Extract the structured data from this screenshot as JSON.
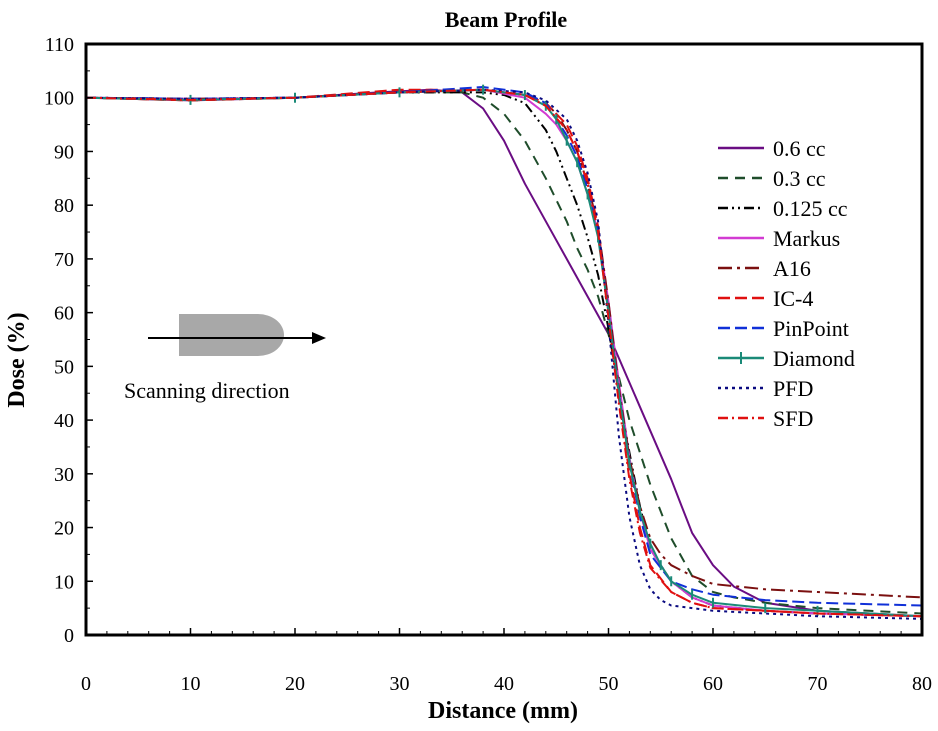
{
  "chart_data": {
    "type": "line",
    "title": "Beam Profile",
    "xlabel": "Distance (mm)",
    "ylabel": "Dose (%)",
    "xlim": [
      0,
      80
    ],
    "ylim": [
      0,
      110
    ],
    "xticks": [
      0,
      10,
      20,
      30,
      40,
      50,
      60,
      70,
      80
    ],
    "yticks": [
      0,
      10,
      20,
      30,
      40,
      50,
      60,
      70,
      80,
      90,
      100,
      110
    ],
    "grid": false,
    "legend_position": "right",
    "annotation": "Scanning direction",
    "series": [
      {
        "name": "0.6 cc",
        "color": "#6a0d83",
        "dash": "solid",
        "x": [
          0,
          10,
          20,
          28,
          33,
          36,
          38,
          40,
          42,
          44,
          46,
          48,
          50,
          52,
          54,
          56,
          57,
          58,
          60,
          62,
          65,
          70,
          75,
          80
        ],
        "y": [
          100,
          99.5,
          100,
          101,
          101.5,
          101,
          98,
          92,
          84,
          77,
          70,
          63,
          56,
          47,
          38,
          29,
          24,
          19,
          13,
          9,
          6,
          4.5,
          4,
          3.5
        ]
      },
      {
        "name": "0.3 cc",
        "color": "#1f4d2b",
        "dash": "10,7",
        "x": [
          0,
          10,
          20,
          30,
          36,
          38,
          40,
          42,
          44,
          46,
          47,
          48,
          49,
          50,
          51,
          52,
          54,
          56,
          58,
          60,
          62,
          65,
          70,
          80
        ],
        "y": [
          100,
          99.5,
          100,
          101,
          101,
          100,
          97,
          92,
          85,
          77,
          72,
          68,
          63,
          56,
          48,
          40,
          28,
          18,
          11,
          8,
          7,
          6,
          5,
          4
        ]
      },
      {
        "name": "0.125 cc",
        "color": "#000000",
        "dash": "10,4,2,4,2,4",
        "x": [
          0,
          10,
          20,
          30,
          38,
          40,
          42,
          44,
          45,
          46,
          47,
          48,
          49,
          50,
          51,
          52,
          53,
          54,
          56,
          58,
          60,
          65,
          70,
          80
        ],
        "y": [
          100,
          99.8,
          100,
          101,
          101,
          100.5,
          99,
          94,
          90,
          85,
          80,
          74,
          67,
          57,
          45,
          34,
          24,
          16,
          10,
          7,
          5.5,
          4.5,
          4,
          3.5
        ]
      },
      {
        "name": "Markus",
        "color": "#d23bd2",
        "dash": "solid",
        "x": [
          0,
          10,
          20,
          30,
          38,
          42,
          44,
          45,
          46,
          47,
          48,
          49,
          50,
          51,
          52,
          53,
          54,
          56,
          58,
          60,
          65,
          70,
          80
        ],
        "y": [
          100,
          99.8,
          100,
          101,
          101.5,
          100,
          97,
          95,
          92,
          88,
          82,
          75,
          62,
          47,
          33,
          23,
          16,
          10,
          7,
          5.5,
          4.5,
          4,
          3.5
        ]
      },
      {
        "name": "A16",
        "color": "#7b1010",
        "dash": "14,5,3,5",
        "x": [
          0,
          10,
          20,
          30,
          38,
          42,
          44,
          45,
          46,
          47,
          48,
          49,
          50,
          51,
          52,
          53,
          54,
          55,
          56,
          58,
          60,
          65,
          70,
          80
        ],
        "y": [
          100,
          99.8,
          100,
          101,
          101.5,
          100.5,
          99,
          97,
          94,
          90,
          84,
          76,
          62,
          46,
          33,
          24,
          18,
          15,
          13,
          11,
          9.5,
          8.5,
          8,
          7
        ]
      },
      {
        "name": "IC-4",
        "color": "#e01010",
        "dash": "12,5",
        "x": [
          0,
          10,
          20,
          30,
          38,
          42,
          44,
          46,
          47,
          48,
          49,
          50,
          51,
          52,
          53,
          54,
          56,
          58,
          60,
          65,
          70,
          80
        ],
        "y": [
          100,
          99.5,
          100,
          101.5,
          101.5,
          100.5,
          99,
          95,
          91,
          85,
          76,
          60,
          44,
          30,
          20,
          13,
          8,
          6,
          5,
          4.5,
          4,
          3.5
        ]
      },
      {
        "name": "PinPoint",
        "color": "#1030d8",
        "dash": "12,5",
        "x": [
          0,
          10,
          20,
          30,
          38,
          42,
          44,
          45,
          46,
          47,
          48,
          49,
          50,
          51,
          52,
          53,
          54,
          56,
          58,
          60,
          65,
          70,
          80
        ],
        "y": [
          100,
          99.8,
          100,
          101,
          102,
          101,
          99,
          96,
          93,
          89,
          83,
          75,
          60,
          45,
          32,
          22,
          15,
          10,
          8.5,
          7.5,
          6.5,
          6,
          5.5
        ]
      },
      {
        "name": "Diamond",
        "color": "#1a8a78",
        "dash": "solid",
        "x": [
          0,
          10,
          20,
          30,
          38,
          42,
          44,
          45,
          46,
          47,
          48,
          49,
          50,
          51,
          52,
          53,
          54,
          55,
          56,
          58,
          60,
          65,
          70,
          80
        ],
        "y": [
          100,
          99.6,
          100,
          101,
          101.5,
          100.5,
          98.5,
          96,
          92,
          88,
          82,
          74,
          60,
          45,
          32,
          23,
          17,
          13,
          10,
          7.5,
          6,
          5,
          4.5,
          3.5
        ]
      },
      {
        "name": "PFD",
        "color": "#0a0a80",
        "dash": "3,4",
        "x": [
          0,
          10,
          20,
          30,
          38,
          42,
          44,
          46,
          47,
          48,
          49,
          50,
          51,
          52,
          53,
          54,
          55,
          56,
          58,
          60,
          65,
          70,
          80
        ],
        "y": [
          100,
          99.8,
          100,
          101,
          101.5,
          101,
          99.5,
          96,
          92,
          86,
          77,
          58,
          37,
          22,
          13,
          8.5,
          6.5,
          5.5,
          5,
          4.5,
          4,
          3.5,
          3
        ]
      },
      {
        "name": "SFD",
        "color": "#e01010",
        "dash": "10,4,2,4",
        "x": [
          0,
          10,
          20,
          30,
          38,
          42,
          44,
          46,
          47,
          48,
          49,
          50,
          51,
          52,
          53,
          54,
          56,
          58,
          60,
          65,
          70,
          80
        ],
        "y": [
          100,
          99.6,
          100,
          101,
          101.5,
          100.5,
          98.5,
          94,
          90,
          84,
          75,
          59,
          43,
          29,
          19,
          12.5,
          8,
          6,
          5,
          4.5,
          4,
          3.5
        ]
      }
    ]
  }
}
